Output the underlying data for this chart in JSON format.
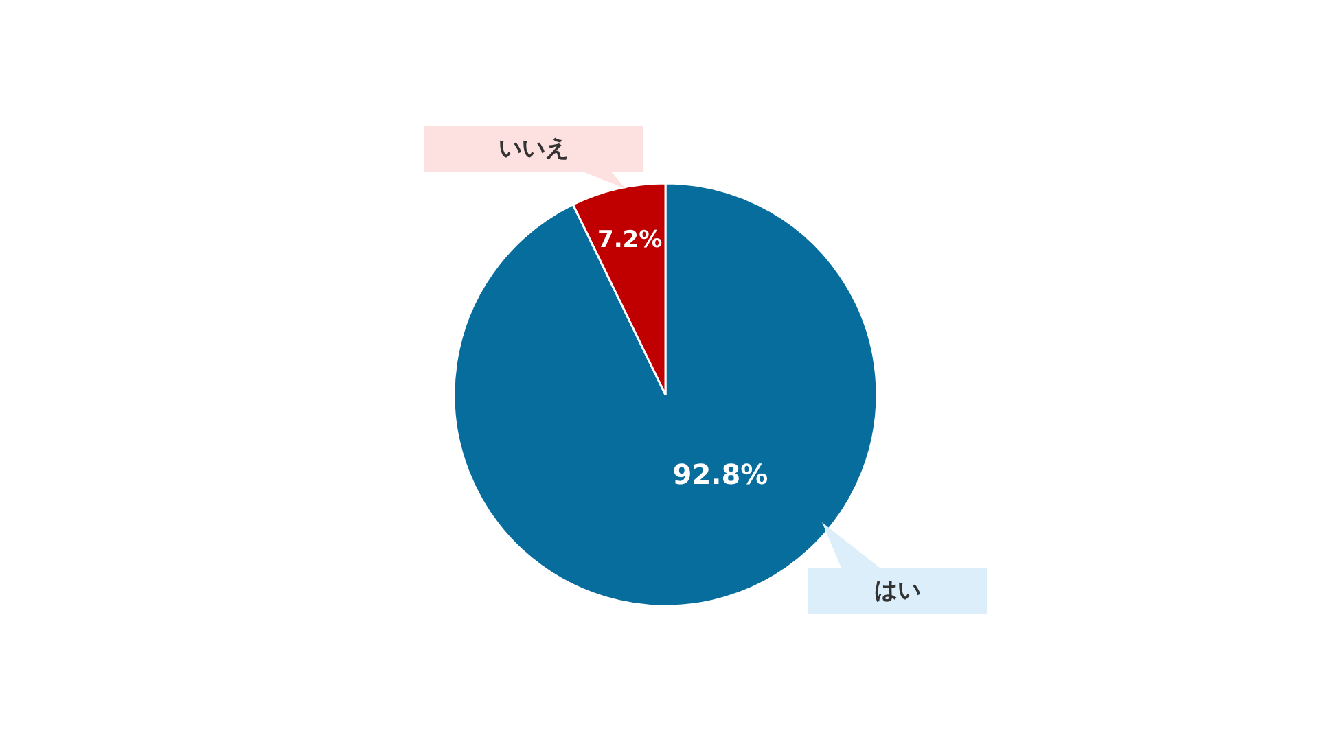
{
  "chart_data": {
    "type": "pie",
    "categories": [
      "はい",
      "いいえ"
    ],
    "values": [
      92.8,
      7.2
    ],
    "colors": [
      "#066d9c",
      "#c00000"
    ],
    "value_labels": [
      "92.8%",
      "7.2%"
    ]
  }
}
